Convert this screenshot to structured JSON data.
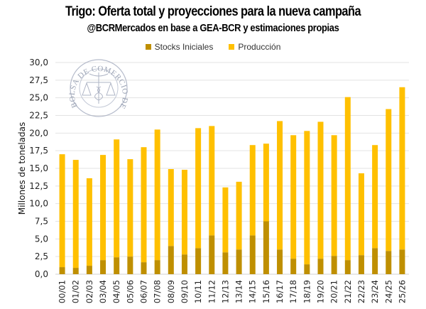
{
  "chart_data": {
    "type": "bar",
    "stacked": true,
    "title": "Trigo: Oferta total y proyecciones para la nueva campaña",
    "subtitle": "@BCRMercados en base a GEA-BCR y estimaciones propias",
    "xlabel": "",
    "ylabel": "Millones de toneladas",
    "ylim": [
      0,
      30
    ],
    "yticks": [
      "0,0",
      "2,5",
      "5,0",
      "7,5",
      "10,0",
      "12,5",
      "15,0",
      "17,5",
      "20,0",
      "22,5",
      "25,0",
      "27,5",
      "30,0"
    ],
    "ytick_values": [
      0,
      2.5,
      5,
      7.5,
      10,
      12.5,
      15,
      17.5,
      20,
      22.5,
      25,
      27.5,
      30
    ],
    "grid": true,
    "legend_position": "top-center",
    "watermark": "BOLSA DE COMERCIO DE ROSARIO",
    "categories": [
      "00/01",
      "01/02",
      "02/03",
      "03/04",
      "04/05",
      "05/06",
      "06/07",
      "07/08",
      "08/09",
      "09/10",
      "10/11",
      "11/12",
      "12/13",
      "13/14",
      "14/15",
      "15/16",
      "16/17",
      "17/18",
      "18/19",
      "19/20",
      "20/21",
      "21/22",
      "22/23",
      "23/24",
      "24/25",
      "25/26"
    ],
    "series": [
      {
        "name": "Stocks Iniciales",
        "color": "#BF8F00",
        "values": [
          1.0,
          0.9,
          1.2,
          2.0,
          2.4,
          2.5,
          1.7,
          2.0,
          4.0,
          2.8,
          3.7,
          5.5,
          3.1,
          3.5,
          5.5,
          7.5,
          3.5,
          2.2,
          1.4,
          2.2,
          2.6,
          2.0,
          2.7,
          3.7,
          3.3,
          3.5
        ]
      },
      {
        "name": "Producción",
        "color": "#FFC000",
        "values": [
          16.0,
          15.3,
          12.4,
          14.9,
          16.7,
          13.8,
          16.3,
          18.5,
          10.9,
          12.0,
          17.0,
          15.5,
          9.2,
          9.6,
          12.8,
          11.0,
          18.2,
          17.5,
          18.9,
          19.4,
          17.1,
          23.1,
          11.6,
          14.6,
          20.1,
          23.0
        ]
      }
    ],
    "totals": [
      17.0,
      16.2,
      13.6,
      16.9,
      19.1,
      16.3,
      18.0,
      20.5,
      14.9,
      14.8,
      20.7,
      21.0,
      12.3,
      13.1,
      18.3,
      18.5,
      21.7,
      19.7,
      20.3,
      21.6,
      19.7,
      25.1,
      14.3,
      18.3,
      23.4,
      26.5
    ]
  }
}
